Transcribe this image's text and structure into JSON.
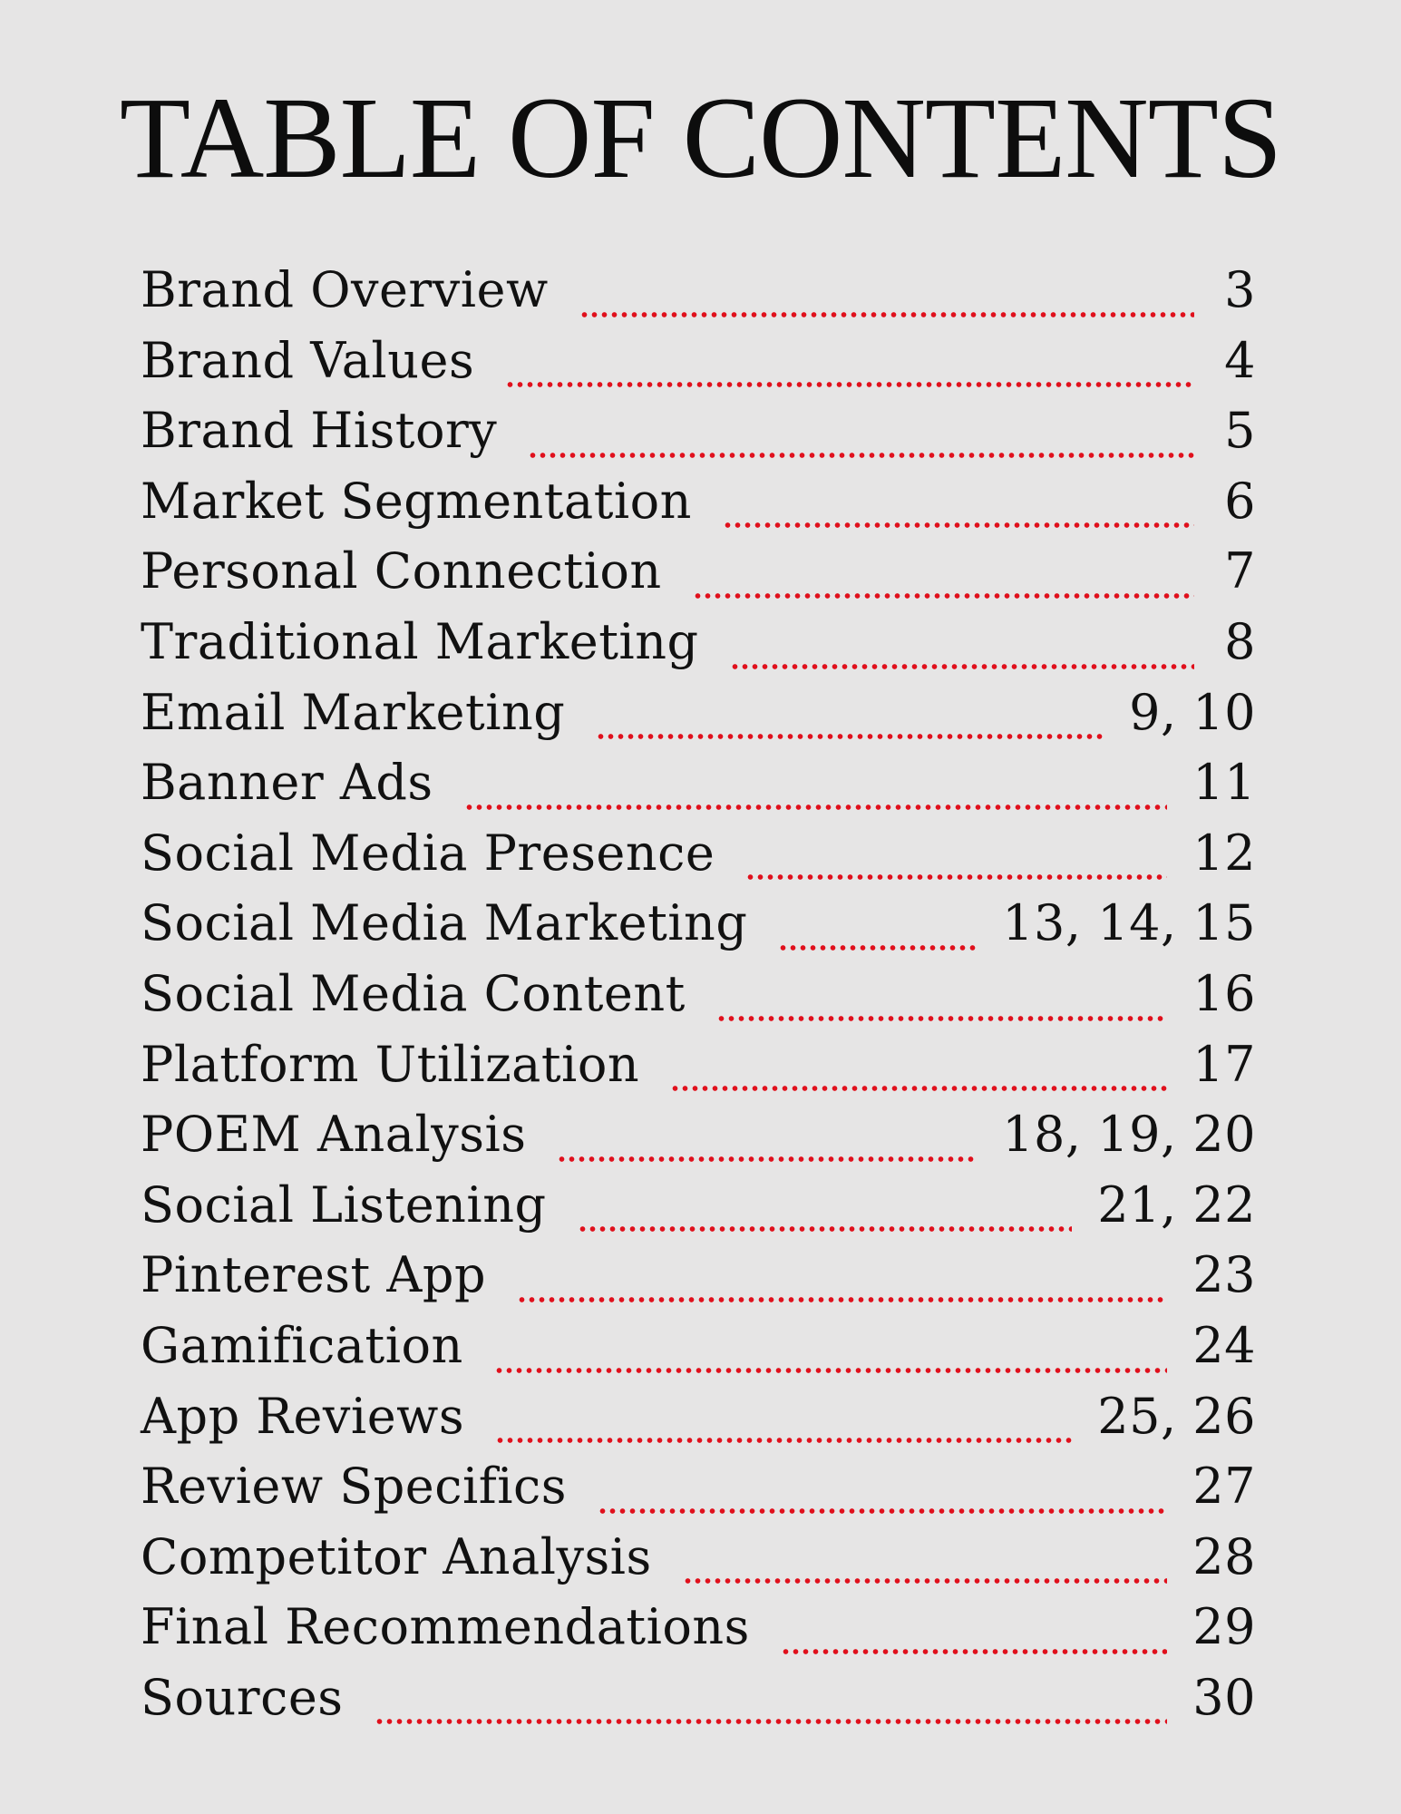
{
  "title": "TABLE OF CONTENTS",
  "leader_color": "#e0101c",
  "entries": [
    {
      "label": "Brand Overview",
      "page": "3"
    },
    {
      "label": "Brand Values",
      "page": "4"
    },
    {
      "label": "Brand History",
      "page": "5"
    },
    {
      "label": "Market Segmentation",
      "page": "6"
    },
    {
      "label": "Personal Connection",
      "page": "7"
    },
    {
      "label": "Traditional Marketing",
      "page": "8"
    },
    {
      "label": "Email Marketing",
      "page": "9, 10"
    },
    {
      "label": "Banner Ads",
      "page": "11"
    },
    {
      "label": "Social Media Presence",
      "page": "12"
    },
    {
      "label": "Social Media Marketing",
      "page": "13, 14, 15"
    },
    {
      "label": "Social Media Content",
      "page": "16"
    },
    {
      "label": "Platform Utilization",
      "page": "17"
    },
    {
      "label": "POEM Analysis",
      "page": "18, 19, 20"
    },
    {
      "label": "Social Listening",
      "page": "21, 22"
    },
    {
      "label": "Pinterest App",
      "page": "23"
    },
    {
      "label": "Gamification",
      "page": "24"
    },
    {
      "label": "App Reviews",
      "page": "25, 26"
    },
    {
      "label": "Review Specifics",
      "page": "27"
    },
    {
      "label": "Competitor Analysis",
      "page": "28"
    },
    {
      "label": "Final Recommendations",
      "page": "29"
    },
    {
      "label": "Sources",
      "page": "30"
    }
  ]
}
